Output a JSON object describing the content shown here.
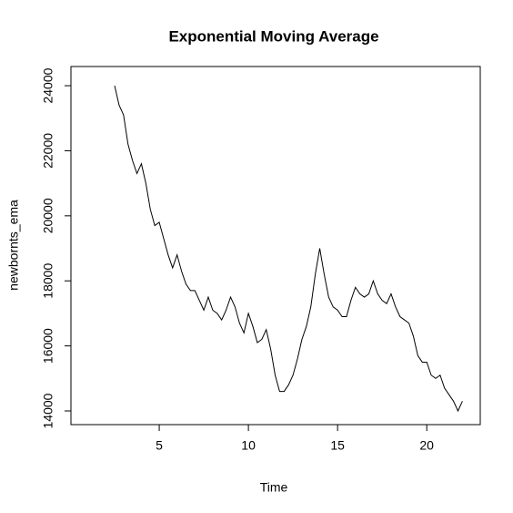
{
  "chart_data": {
    "type": "line",
    "title": "Exponential Moving Average",
    "x_label": "Time",
    "y_label": "newbornts_ema",
    "x": [
      2.5,
      2.75,
      3,
      3.25,
      3.5,
      3.75,
      4,
      4.25,
      4.5,
      4.75,
      5,
      5.25,
      5.5,
      5.75,
      6,
      6.25,
      6.5,
      6.75,
      7,
      7.25,
      7.5,
      7.75,
      8,
      8.25,
      8.5,
      8.75,
      9,
      9.25,
      9.5,
      9.75,
      10,
      10.25,
      10.5,
      10.75,
      11,
      11.25,
      11.5,
      11.75,
      12,
      12.25,
      12.5,
      12.75,
      13,
      13.25,
      13.5,
      13.75,
      14,
      14.25,
      14.5,
      14.75,
      15,
      15.25,
      15.5,
      15.75,
      16,
      16.25,
      16.5,
      16.75,
      17,
      17.25,
      17.5,
      17.75,
      18,
      18.25,
      18.5,
      18.75,
      19,
      19.25,
      19.5,
      19.75,
      20,
      20.25,
      20.5,
      20.75,
      21,
      21.25,
      21.5,
      21.75,
      22
    ],
    "series": [
      {
        "name": "newbornts_ema",
        "color": "#000000",
        "values": [
          24000,
          23400,
          23100,
          22200,
          21700,
          21300,
          21600,
          21000,
          20200,
          19700,
          19800,
          19300,
          18800,
          18400,
          18800,
          18300,
          17900,
          17700,
          17700,
          17400,
          17100,
          17500,
          17100,
          17000,
          16800,
          17100,
          17500,
          17200,
          16700,
          16400,
          17000,
          16600,
          16100,
          16200,
          16500,
          15900,
          15100,
          14600,
          14600,
          14800,
          15100,
          15600,
          16200,
          16600,
          17200,
          18200,
          19000,
          18200,
          17500,
          17200,
          17100,
          16900,
          16900,
          17400,
          17800,
          17600,
          17500,
          17600,
          18000,
          17600,
          17400,
          17300,
          17600,
          17200,
          16900,
          16800,
          16700,
          16300,
          15700,
          15500,
          15500,
          15100,
          15000,
          15100,
          14700,
          14500,
          14300,
          14000,
          14300
        ]
      }
    ],
    "xlim": [
      0.05,
      23.0
    ],
    "ylim": [
      13580,
      24590
    ],
    "xticks": [
      5,
      10,
      15,
      20
    ],
    "yticks": [
      14000,
      16000,
      18000,
      20000,
      22000,
      24000
    ]
  }
}
